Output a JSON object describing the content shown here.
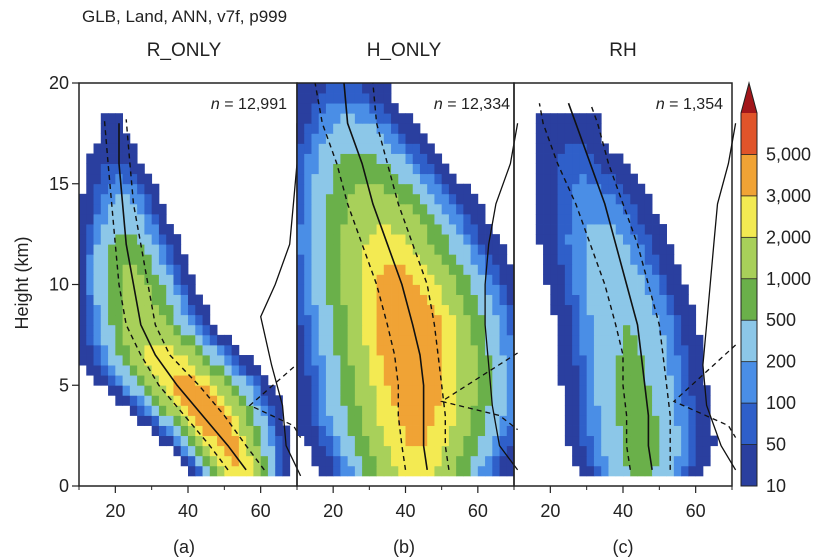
{
  "supertitle": "GLB, Land, ANN, v7f, p999",
  "ylabel": "Height (km)",
  "colorbar": {
    "levels": [
      "10",
      "50",
      "100",
      "200",
      "500",
      "1,000",
      "2,000",
      "3,000",
      "5,000"
    ],
    "colors": [
      "#2a3f9f",
      "#2f5fc9",
      "#4a8ee6",
      "#8cc7e8",
      "#6ab04a",
      "#a8d05a",
      "#f3ea52",
      "#f0a335",
      "#e0542a",
      "#a2161a"
    ]
  },
  "chart_data": [
    {
      "type": "heatmap",
      "title": "R_ONLY",
      "n_label": "= 12,991",
      "panel_label": "(a)",
      "xlim": [
        10,
        70
      ],
      "ylim": [
        0,
        20
      ],
      "xticks": [
        "20",
        "40",
        "60"
      ],
      "yticks": [
        "0",
        "5",
        "10",
        "15",
        "20"
      ],
      "density_model": [
        {
          "y": 0.8,
          "center": 54,
          "width": 4,
          "peak": 3000
        },
        {
          "y": 2,
          "center": 51,
          "width": 5,
          "peak": 3500
        },
        {
          "y": 3.5,
          "center": 46,
          "width": 6,
          "peak": 4000
        },
        {
          "y": 5,
          "center": 40,
          "width": 7,
          "peak": 3500
        },
        {
          "y": 6.5,
          "center": 33,
          "width": 7,
          "peak": 2500
        },
        {
          "y": 8,
          "center": 28,
          "width": 6,
          "peak": 1600
        },
        {
          "y": 10,
          "center": 25,
          "width": 5.5,
          "peak": 1300
        },
        {
          "y": 12,
          "center": 23,
          "width": 5,
          "peak": 700
        },
        {
          "y": 14,
          "center": 22,
          "width": 4.5,
          "peak": 250
        },
        {
          "y": 16,
          "center": 20,
          "width": 4,
          "peak": 60
        },
        {
          "y": 17.5,
          "center": 19,
          "width": 3.5,
          "peak": 15
        }
      ],
      "median": [
        {
          "x": 56,
          "y": 0.8
        },
        {
          "x": 51,
          "y": 2
        },
        {
          "x": 44,
          "y": 3.5
        },
        {
          "x": 37,
          "y": 5
        },
        {
          "x": 31,
          "y": 6.5
        },
        {
          "x": 27,
          "y": 8
        },
        {
          "x": 25,
          "y": 10
        },
        {
          "x": 23,
          "y": 12
        },
        {
          "x": 22,
          "y": 14
        },
        {
          "x": 21,
          "y": 16
        },
        {
          "x": 21,
          "y": 18
        }
      ],
      "p25": [
        {
          "x": 51,
          "y": 0.8
        },
        {
          "x": 46,
          "y": 2
        },
        {
          "x": 39,
          "y": 3.5
        },
        {
          "x": 32,
          "y": 5
        },
        {
          "x": 27,
          "y": 6.5
        },
        {
          "x": 23,
          "y": 8
        },
        {
          "x": 21,
          "y": 10
        },
        {
          "x": 20,
          "y": 12
        },
        {
          "x": 19,
          "y": 14
        },
        {
          "x": 18,
          "y": 16
        },
        {
          "x": 17,
          "y": 18.2
        }
      ],
      "p75": [
        {
          "x": 61,
          "y": 0.8
        },
        {
          "x": 56,
          "y": 2
        },
        {
          "x": 50,
          "y": 3.5
        },
        {
          "x": 43,
          "y": 5
        },
        {
          "x": 35,
          "y": 6.5
        },
        {
          "x": 31,
          "y": 8
        },
        {
          "x": 29,
          "y": 10
        },
        {
          "x": 27,
          "y": 12
        },
        {
          "x": 25,
          "y": 14
        },
        {
          "x": 24,
          "y": 16
        },
        {
          "x": 23,
          "y": 18.2
        }
      ],
      "profile": [
        {
          "x": 71,
          "y": 0.5
        },
        {
          "x": 67,
          "y": 2
        },
        {
          "x": 66,
          "y": 4
        },
        {
          "x": 63,
          "y": 6
        },
        {
          "x": 60,
          "y": 8.4
        },
        {
          "x": 64,
          "y": 10
        },
        {
          "x": 68,
          "y": 12
        },
        {
          "x": 69,
          "y": 14
        },
        {
          "x": 70,
          "y": 16
        },
        {
          "x": 70,
          "y": 18
        }
      ],
      "profile_dashed": [
        {
          "x": 71,
          "y": 6.2
        },
        {
          "x": 57,
          "y": 4
        },
        {
          "x": 69,
          "y": 3
        },
        {
          "x": 71,
          "y": 2.4
        }
      ]
    },
    {
      "type": "heatmap",
      "title": "H_ONLY",
      "n_label": "= 12,334",
      "panel_label": "(b)",
      "xlim": [
        10,
        70
      ],
      "ylim": [
        0,
        20
      ],
      "xticks": [
        "20",
        "40",
        "60"
      ],
      "yticks": [
        "0",
        "5",
        "10",
        "15",
        "20"
      ],
      "density_model": [
        {
          "y": 0.8,
          "center": 43,
          "width": 8,
          "peak": 2500
        },
        {
          "y": 2,
          "center": 43,
          "width": 9,
          "peak": 3000
        },
        {
          "y": 3.5,
          "center": 43,
          "width": 10,
          "peak": 3500
        },
        {
          "y": 5,
          "center": 43,
          "width": 10,
          "peak": 4000
        },
        {
          "y": 6.5,
          "center": 42,
          "width": 10,
          "peak": 4500
        },
        {
          "y": 8,
          "center": 41,
          "width": 10,
          "peak": 4500
        },
        {
          "y": 10,
          "center": 38,
          "width": 10,
          "peak": 3500
        },
        {
          "y": 12,
          "center": 35,
          "width": 9.5,
          "peak": 2500
        },
        {
          "y": 14,
          "center": 32,
          "width": 9,
          "peak": 1500
        },
        {
          "y": 16,
          "center": 28,
          "width": 8,
          "peak": 700
        },
        {
          "y": 18,
          "center": 25,
          "width": 7,
          "peak": 250
        },
        {
          "y": 19.5,
          "center": 23,
          "width": 6,
          "peak": 80
        }
      ],
      "median": [
        {
          "x": 46,
          "y": 0.8
        },
        {
          "x": 45,
          "y": 2
        },
        {
          "x": 45,
          "y": 3.5
        },
        {
          "x": 45,
          "y": 5
        },
        {
          "x": 44,
          "y": 6.5
        },
        {
          "x": 42,
          "y": 8
        },
        {
          "x": 39,
          "y": 10
        },
        {
          "x": 35,
          "y": 12
        },
        {
          "x": 31,
          "y": 14
        },
        {
          "x": 28,
          "y": 16
        },
        {
          "x": 24,
          "y": 18
        },
        {
          "x": 23,
          "y": 20
        }
      ],
      "p25": [
        {
          "x": 40,
          "y": 0.8
        },
        {
          "x": 39,
          "y": 2
        },
        {
          "x": 38,
          "y": 3.5
        },
        {
          "x": 38,
          "y": 5
        },
        {
          "x": 37,
          "y": 6.5
        },
        {
          "x": 35,
          "y": 8
        },
        {
          "x": 32,
          "y": 10
        },
        {
          "x": 28,
          "y": 12
        },
        {
          "x": 24,
          "y": 14
        },
        {
          "x": 21,
          "y": 16
        },
        {
          "x": 17,
          "y": 18
        },
        {
          "x": 15,
          "y": 20
        }
      ],
      "p75": [
        {
          "x": 52,
          "y": 0.8
        },
        {
          "x": 51,
          "y": 2
        },
        {
          "x": 51,
          "y": 3.5
        },
        {
          "x": 50,
          "y": 5
        },
        {
          "x": 49,
          "y": 6.5
        },
        {
          "x": 48,
          "y": 8
        },
        {
          "x": 46,
          "y": 10
        },
        {
          "x": 42,
          "y": 12
        },
        {
          "x": 38,
          "y": 14
        },
        {
          "x": 35,
          "y": 16
        },
        {
          "x": 32,
          "y": 18
        },
        {
          "x": 31,
          "y": 20
        }
      ],
      "profile": [
        {
          "x": 71,
          "y": 0.8
        },
        {
          "x": 66,
          "y": 2
        },
        {
          "x": 64,
          "y": 4
        },
        {
          "x": 63,
          "y": 6
        },
        {
          "x": 62,
          "y": 8
        },
        {
          "x": 62,
          "y": 10
        },
        {
          "x": 63,
          "y": 12
        },
        {
          "x": 65,
          "y": 14
        },
        {
          "x": 69,
          "y": 16
        },
        {
          "x": 71,
          "y": 18
        }
      ],
      "profile_dashed": [
        {
          "x": 71,
          "y": 6.6
        },
        {
          "x": 50,
          "y": 4.2
        },
        {
          "x": 66,
          "y": 3.5
        },
        {
          "x": 71,
          "y": 2.8
        }
      ]
    },
    {
      "type": "heatmap",
      "title": "RH",
      "n_label": "= 1,354",
      "panel_label": "(c)",
      "xlim": [
        10,
        70
      ],
      "ylim": [
        0,
        20
      ],
      "xticks": [
        "20",
        "40",
        "60"
      ],
      "yticks": [
        "0",
        "5",
        "10",
        "15",
        "20"
      ],
      "density_model": [
        {
          "y": 0.8,
          "center": 45,
          "width": 6,
          "peak": 600
        },
        {
          "y": 2,
          "center": 45,
          "width": 7,
          "peak": 700
        },
        {
          "y": 3.5,
          "center": 44,
          "width": 7,
          "peak": 650
        },
        {
          "y": 5,
          "center": 43,
          "width": 7,
          "peak": 600
        },
        {
          "y": 6.5,
          "center": 42,
          "width": 7,
          "peak": 550
        },
        {
          "y": 8,
          "center": 41,
          "width": 7,
          "peak": 500
        },
        {
          "y": 10,
          "center": 38,
          "width": 7,
          "peak": 400
        },
        {
          "y": 12,
          "center": 35,
          "width": 7,
          "peak": 280
        },
        {
          "y": 14,
          "center": 32,
          "width": 7,
          "peak": 150
        },
        {
          "y": 16,
          "center": 28,
          "width": 6,
          "peak": 80
        },
        {
          "y": 17.5,
          "center": 25,
          "width": 5,
          "peak": 40
        }
      ],
      "median": [
        {
          "x": 48,
          "y": 0.8
        },
        {
          "x": 47,
          "y": 2
        },
        {
          "x": 47,
          "y": 3.5
        },
        {
          "x": 46,
          "y": 5
        },
        {
          "x": 45,
          "y": 6.5
        },
        {
          "x": 44,
          "y": 8
        },
        {
          "x": 41,
          "y": 10
        },
        {
          "x": 38,
          "y": 12
        },
        {
          "x": 35,
          "y": 14
        },
        {
          "x": 31,
          "y": 16
        },
        {
          "x": 27,
          "y": 18
        },
        {
          "x": 25,
          "y": 19
        }
      ],
      "p25": [
        {
          "x": 42,
          "y": 0.8
        },
        {
          "x": 41,
          "y": 2
        },
        {
          "x": 41,
          "y": 3.5
        },
        {
          "x": 40,
          "y": 5
        },
        {
          "x": 40,
          "y": 6.5
        },
        {
          "x": 38,
          "y": 8
        },
        {
          "x": 35,
          "y": 10
        },
        {
          "x": 31,
          "y": 12
        },
        {
          "x": 27,
          "y": 14
        },
        {
          "x": 22,
          "y": 16
        },
        {
          "x": 18,
          "y": 18
        },
        {
          "x": 17,
          "y": 19
        }
      ],
      "p75": [
        {
          "x": 53,
          "y": 0.8
        },
        {
          "x": 53,
          "y": 2
        },
        {
          "x": 53,
          "y": 3.5
        },
        {
          "x": 52,
          "y": 5
        },
        {
          "x": 51,
          "y": 6.5
        },
        {
          "x": 50,
          "y": 8
        },
        {
          "x": 47,
          "y": 10
        },
        {
          "x": 44,
          "y": 12
        },
        {
          "x": 40,
          "y": 14
        },
        {
          "x": 36,
          "y": 16
        },
        {
          "x": 33,
          "y": 18
        },
        {
          "x": 31,
          "y": 19
        }
      ],
      "profile": [
        {
          "x": 71,
          "y": 0.8
        },
        {
          "x": 67,
          "y": 2
        },
        {
          "x": 63,
          "y": 4
        },
        {
          "x": 62,
          "y": 6
        },
        {
          "x": 63,
          "y": 8
        },
        {
          "x": 64,
          "y": 10
        },
        {
          "x": 65,
          "y": 12
        },
        {
          "x": 66,
          "y": 14
        },
        {
          "x": 69,
          "y": 16
        },
        {
          "x": 71,
          "y": 18
        }
      ],
      "profile_dashed": [
        {
          "x": 71,
          "y": 7
        },
        {
          "x": 54,
          "y": 4.2
        },
        {
          "x": 69,
          "y": 3
        },
        {
          "x": 71,
          "y": 2.4
        }
      ]
    }
  ]
}
